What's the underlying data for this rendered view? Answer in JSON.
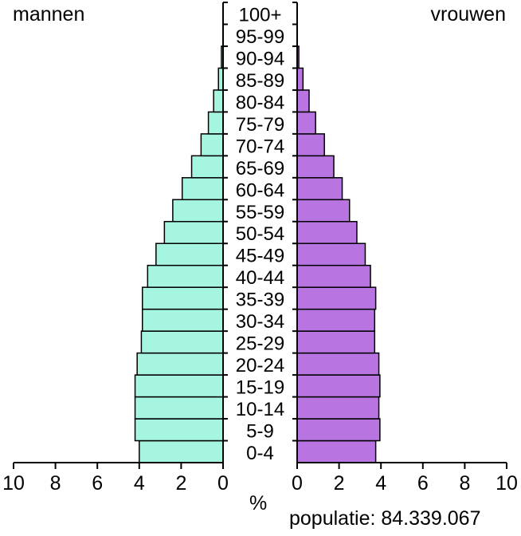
{
  "labels": {
    "left": "mannen",
    "right": "vrouwen",
    "x_unit": "%",
    "population": "populatie: 84.339.067"
  },
  "colors": {
    "men": "#a6f5e0",
    "women": "#b874e0",
    "outline": "#000000"
  },
  "chart_data": {
    "type": "bar",
    "orientation": "horizontal",
    "title": "",
    "xlabel": "%",
    "ylabel": "",
    "categories": [
      "0-4",
      "5-9",
      "10-14",
      "15-19",
      "20-24",
      "25-29",
      "30-34",
      "35-39",
      "40-44",
      "45-49",
      "50-54",
      "55-59",
      "60-64",
      "65-69",
      "70-74",
      "75-79",
      "80-84",
      "85-89",
      "90-94",
      "95-99",
      "100+"
    ],
    "series": [
      {
        "name": "mannen",
        "values": [
          4.0,
          4.2,
          4.2,
          4.2,
          4.1,
          3.9,
          3.85,
          3.85,
          3.6,
          3.2,
          2.8,
          2.4,
          1.95,
          1.5,
          1.05,
          0.7,
          0.45,
          0.22,
          0.08,
          0.01,
          0.0
        ]
      },
      {
        "name": "vrouwen",
        "values": [
          3.75,
          3.95,
          3.9,
          3.95,
          3.9,
          3.7,
          3.7,
          3.75,
          3.5,
          3.25,
          2.85,
          2.5,
          2.15,
          1.75,
          1.3,
          0.88,
          0.57,
          0.28,
          0.08,
          0.01,
          0.0
        ]
      }
    ],
    "xlim_left": [
      10,
      0
    ],
    "xlim_right": [
      0,
      10
    ],
    "x_ticks_left": [
      "10",
      "8",
      "6",
      "4",
      "2",
      "0"
    ],
    "x_ticks_right": [
      "0",
      "2",
      "4",
      "6",
      "8",
      "10"
    ],
    "grid": false,
    "annotations": [
      "mannen",
      "vrouwen",
      "populatie: 84.339.067"
    ]
  }
}
